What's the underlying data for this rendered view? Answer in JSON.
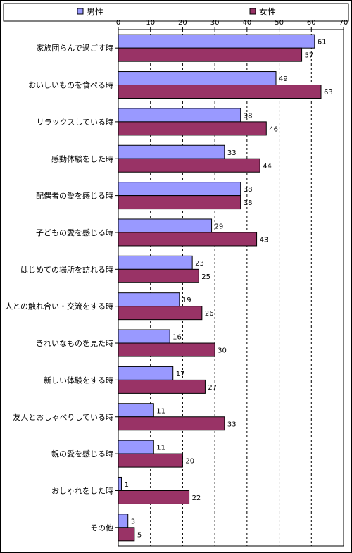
{
  "chart_data": {
    "type": "bar",
    "orientation": "horizontal",
    "categories": [
      "家族団らんで過ごす時",
      "おいしいものを食べる時",
      "リラックスしている時",
      "感動体験をした時",
      "配偶者の愛を感じる時",
      "子どもの愛を感じる時",
      "はじめての場所を訪れる時",
      "人との触れ合い・交流をする時",
      "きれいなものを見た時",
      "新しい体験をする時",
      "友人とおしゃべりしている時",
      "親の愛を感じる時",
      "おしゃれをした時",
      "その他"
    ],
    "series": [
      {
        "name": "男性",
        "color": "#9999ff",
        "values": [
          61,
          49,
          38,
          33,
          38,
          29,
          23,
          19,
          16,
          17,
          11,
          11,
          1,
          3
        ]
      },
      {
        "name": "女性",
        "color": "#993366",
        "values": [
          57,
          63,
          46,
          44,
          38,
          43,
          25,
          26,
          30,
          27,
          33,
          20,
          22,
          5
        ]
      }
    ],
    "xlim": [
      0,
      70
    ],
    "xticks": [
      0,
      10,
      20,
      30,
      40,
      50,
      60,
      70
    ],
    "title": "",
    "xlabel": "",
    "ylabel": "",
    "legend_position": "top",
    "grid": "vertical dashed",
    "data_labels": true
  }
}
